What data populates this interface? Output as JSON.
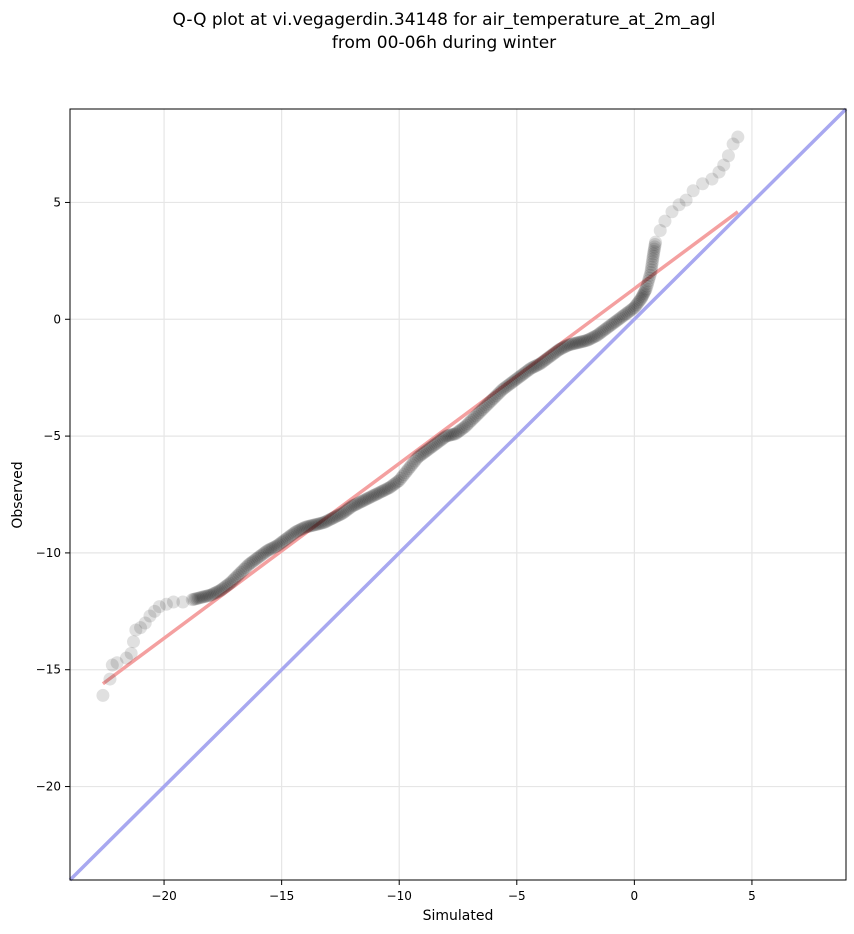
{
  "chart_data": {
    "type": "scatter",
    "title_lines": [
      "Q-Q plot at vi.vegagerdin.34148 for air_temperature_at_2m_agl",
      "from 00-06h during winter"
    ],
    "xlabel": "Simulated",
    "ylabel": "Observed",
    "xlim": [
      -24,
      9
    ],
    "ylim": [
      -24,
      9
    ],
    "xticks": [
      -20,
      -15,
      -10,
      -5,
      0,
      5
    ],
    "yticks": [
      -20,
      -15,
      -10,
      -5,
      0,
      5
    ],
    "grid": true,
    "series": [
      {
        "kind": "quantile-points",
        "color": "#000000",
        "points": [
          [
            -22.6,
            -16.1
          ],
          [
            -22.3,
            -15.4
          ],
          [
            -22.2,
            -14.8
          ],
          [
            -22.0,
            -14.7
          ],
          [
            -21.6,
            -14.5
          ],
          [
            -21.4,
            -14.3
          ],
          [
            -21.3,
            -13.8
          ],
          [
            -21.2,
            -13.3
          ],
          [
            -21.0,
            -13.2
          ],
          [
            -20.8,
            -13.0
          ],
          [
            -20.6,
            -12.7
          ],
          [
            -20.4,
            -12.5
          ],
          [
            -20.2,
            -12.3
          ],
          [
            -19.9,
            -12.2
          ],
          [
            -19.6,
            -12.1
          ],
          [
            -19.2,
            -12.1
          ],
          [
            -18.8,
            -12.0
          ],
          [
            -18.4,
            -11.9
          ],
          [
            -18.0,
            -11.8
          ],
          [
            -17.6,
            -11.6
          ],
          [
            -17.2,
            -11.3
          ],
          [
            -16.8,
            -10.9
          ],
          [
            -16.4,
            -10.5
          ],
          [
            -16.0,
            -10.2
          ],
          [
            -15.6,
            -9.9
          ],
          [
            -15.2,
            -9.7
          ],
          [
            -14.8,
            -9.4
          ],
          [
            -14.4,
            -9.1
          ],
          [
            -14.0,
            -8.9
          ],
          [
            -13.6,
            -8.8
          ],
          [
            -13.2,
            -8.7
          ],
          [
            -12.8,
            -8.5
          ],
          [
            -12.4,
            -8.3
          ],
          [
            -12.0,
            -8.0
          ],
          [
            -11.6,
            -7.8
          ],
          [
            -11.2,
            -7.6
          ],
          [
            -10.8,
            -7.4
          ],
          [
            -10.4,
            -7.2
          ],
          [
            -10.0,
            -6.9
          ],
          [
            -9.6,
            -6.4
          ],
          [
            -9.2,
            -5.9
          ],
          [
            -8.8,
            -5.6
          ],
          [
            -8.4,
            -5.3
          ],
          [
            -8.0,
            -5.0
          ],
          [
            -7.6,
            -4.9
          ],
          [
            -7.2,
            -4.6
          ],
          [
            -6.8,
            -4.2
          ],
          [
            -6.4,
            -3.8
          ],
          [
            -6.0,
            -3.4
          ],
          [
            -5.6,
            -3.0
          ],
          [
            -5.2,
            -2.7
          ],
          [
            -4.8,
            -2.4
          ],
          [
            -4.4,
            -2.1
          ],
          [
            -4.0,
            -1.9
          ],
          [
            -3.6,
            -1.6
          ],
          [
            -3.2,
            -1.3
          ],
          [
            -2.8,
            -1.1
          ],
          [
            -2.4,
            -1.0
          ],
          [
            -2.0,
            -0.9
          ],
          [
            -1.6,
            -0.7
          ],
          [
            -1.2,
            -0.4
          ],
          [
            -0.8,
            -0.1
          ],
          [
            -0.4,
            0.2
          ],
          [
            0.0,
            0.5
          ],
          [
            0.3,
            0.9
          ],
          [
            0.5,
            1.3
          ],
          [
            0.7,
            2.0
          ],
          [
            0.8,
            2.7
          ],
          [
            0.9,
            3.3
          ],
          [
            1.1,
            3.8
          ],
          [
            1.3,
            4.2
          ],
          [
            1.6,
            4.6
          ],
          [
            1.9,
            4.9
          ],
          [
            2.2,
            5.1
          ],
          [
            2.5,
            5.5
          ],
          [
            2.9,
            5.8
          ],
          [
            3.3,
            6.0
          ],
          [
            3.6,
            6.3
          ],
          [
            3.8,
            6.6
          ],
          [
            4.0,
            7.0
          ],
          [
            4.2,
            7.5
          ],
          [
            4.4,
            7.8
          ]
        ]
      },
      {
        "kind": "fit-line",
        "color": "#f4a0a0",
        "points": [
          [
            -22.6,
            -15.6
          ],
          [
            4.4,
            4.6
          ]
        ]
      },
      {
        "kind": "identity-line",
        "color": "#a8a8f0",
        "points": [
          [
            -24,
            -24
          ],
          [
            9,
            9
          ]
        ]
      }
    ]
  }
}
